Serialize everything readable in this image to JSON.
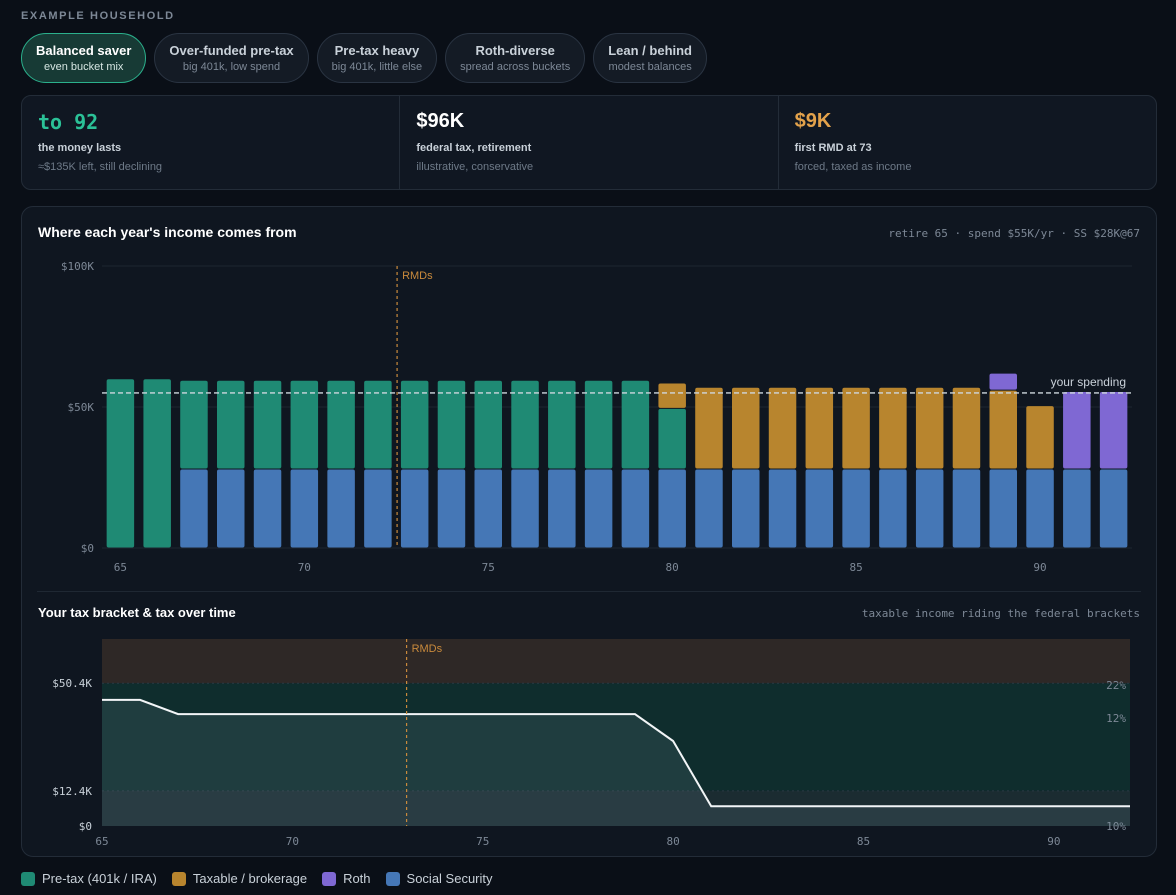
{
  "header": {
    "eyebrow": "EXAMPLE HOUSEHOLD"
  },
  "households": [
    {
      "title": "Balanced saver",
      "subtitle": "even bucket mix",
      "active": true
    },
    {
      "title": "Over-funded pre-tax",
      "subtitle": "big 401k, low spend",
      "active": false
    },
    {
      "title": "Pre-tax heavy",
      "subtitle": "big 401k, little else",
      "active": false
    },
    {
      "title": "Roth-diverse",
      "subtitle": "spread across buckets",
      "active": false
    },
    {
      "title": "Lean / behind",
      "subtitle": "modest balances",
      "active": false
    }
  ],
  "stats": [
    {
      "value": "to 92",
      "label": "the money lasts",
      "note": "≈$135K left, still declining",
      "color": "#2bc197"
    },
    {
      "value": "$96K",
      "label": "federal tax, retirement",
      "note": "illustrative, conservative",
      "color": "#ffffff"
    },
    {
      "value": "$9K",
      "label": "first RMD at 73",
      "note": "forced, taxed as income",
      "color": "#e3a24b"
    }
  ],
  "colors": {
    "pretax": "#1f8a74",
    "taxable": "#b8852e",
    "roth": "#7f68d3",
    "ss": "#4577b6",
    "rmd": "#c98a3c",
    "spending": "#cfd8de"
  },
  "income_chart": {
    "title": "Where each year's income comes from",
    "note": "retire 65 · spend $55K/yr · SS $28K@67",
    "rmd_label": "RMDs",
    "spending_label": "your spending"
  },
  "tax_chart": {
    "title": "Your tax bracket & tax over time",
    "note": "taxable income riding the federal brackets",
    "rmd_label": "RMDs"
  },
  "legend": [
    {
      "label": "Pre-tax (401k / IRA)",
      "key": "pretax"
    },
    {
      "label": "Taxable / brokerage",
      "key": "taxable"
    },
    {
      "label": "Roth",
      "key": "roth"
    },
    {
      "label": "Social Security",
      "key": "ss"
    }
  ],
  "chart_data": [
    {
      "type": "bar",
      "stacked": true,
      "title": "Where each year's income comes from",
      "x": [
        65,
        66,
        67,
        68,
        69,
        70,
        71,
        72,
        73,
        74,
        75,
        76,
        77,
        78,
        79,
        80,
        81,
        82,
        83,
        84,
        85,
        86,
        87,
        88,
        89,
        90,
        91,
        92
      ],
      "xticks": [
        65,
        70,
        75,
        80,
        85,
        90
      ],
      "ylim": [
        0,
        100000
      ],
      "yticks": [
        0,
        50000,
        100000
      ],
      "ytick_labels": [
        "$0",
        "$50K",
        "$100K"
      ],
      "series": [
        {
          "name": "Social Security",
          "key": "ss",
          "values": [
            0,
            0,
            28000,
            28000,
            28000,
            28000,
            28000,
            28000,
            28000,
            28000,
            28000,
            28000,
            28000,
            28000,
            28000,
            28000,
            28000,
            28000,
            28000,
            28000,
            28000,
            28000,
            28000,
            28000,
            28000,
            28000,
            28000,
            28000
          ]
        },
        {
          "name": "Pre-tax (401k / IRA)",
          "key": "pretax",
          "values": [
            60000,
            60000,
            31500,
            31500,
            31500,
            31500,
            31500,
            31500,
            31500,
            31500,
            31500,
            31500,
            31500,
            31500,
            31500,
            21500,
            0,
            0,
            0,
            0,
            0,
            0,
            0,
            0,
            0,
            0,
            0,
            0
          ]
        },
        {
          "name": "Taxable / brokerage",
          "key": "taxable",
          "values": [
            0,
            0,
            0,
            0,
            0,
            0,
            0,
            0,
            0,
            0,
            0,
            0,
            0,
            0,
            0,
            9000,
            29000,
            29000,
            29000,
            29000,
            29000,
            29000,
            29000,
            29000,
            28000,
            22500,
            0,
            0
          ]
        },
        {
          "name": "Roth",
          "key": "roth",
          "values": [
            0,
            0,
            0,
            0,
            0,
            0,
            0,
            0,
            0,
            0,
            0,
            0,
            0,
            0,
            0,
            0,
            0,
            0,
            0,
            0,
            0,
            0,
            0,
            0,
            6000,
            0,
            27500,
            27500
          ]
        }
      ],
      "spending": 55000,
      "rmd_age": 73
    },
    {
      "type": "area",
      "title": "Your tax bracket & tax over time",
      "x": [
        65,
        66,
        67,
        68,
        69,
        70,
        71,
        72,
        73,
        74,
        75,
        76,
        77,
        78,
        79,
        80,
        81,
        82,
        83,
        84,
        85,
        86,
        87,
        88,
        89,
        90,
        91,
        92
      ],
      "xticks": [
        65,
        70,
        75,
        80,
        85,
        90
      ],
      "ylim": [
        0,
        66000
      ],
      "yticks": [
        0,
        12400,
        50400
      ],
      "ytick_labels": [
        "$0",
        "$12.4K",
        "$50.4K"
      ],
      "brackets": [
        {
          "label": "10%",
          "from": 0,
          "to": 12400,
          "color": "#1b2c31"
        },
        {
          "label": "12%",
          "from": 12400,
          "to": 50400,
          "color": "#0f2d2d"
        },
        {
          "label": "22%",
          "from": 50400,
          "to": 66000,
          "color": "#2e2826"
        }
      ],
      "values": [
        44500,
        44500,
        39500,
        39500,
        39500,
        39500,
        39500,
        39500,
        39500,
        39500,
        39500,
        39500,
        39500,
        39500,
        39500,
        30000,
        7000,
        7000,
        7000,
        7000,
        7000,
        7000,
        7000,
        7000,
        7000,
        7000,
        7000,
        7000
      ],
      "rmd_age": 73
    }
  ]
}
